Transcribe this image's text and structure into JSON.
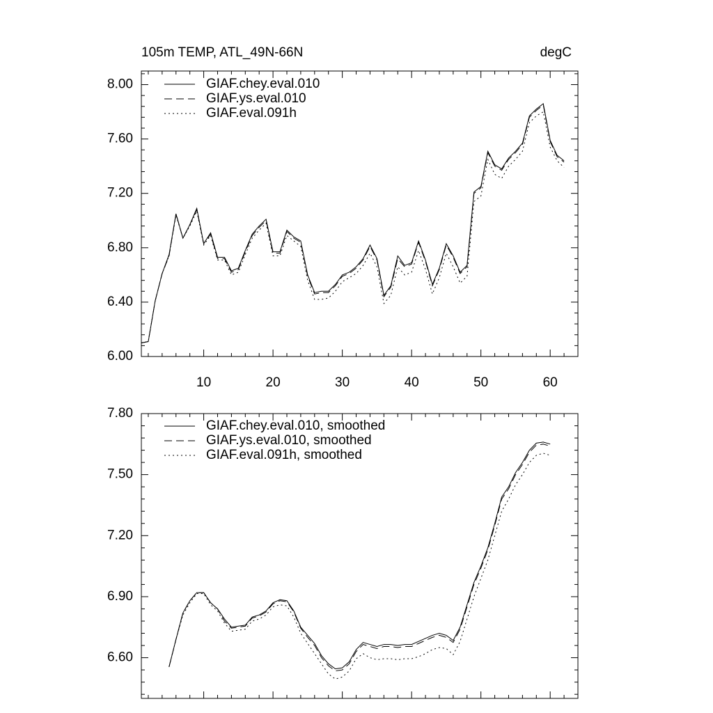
{
  "chart_data": [
    {
      "type": "line",
      "title": "105m TEMP, ATL_49N-66N",
      "units_label": "degC",
      "x": [
        1,
        2,
        3,
        4,
        5,
        6,
        7,
        8,
        9,
        10,
        11,
        12,
        13,
        14,
        15,
        16,
        17,
        18,
        19,
        20,
        21,
        22,
        23,
        24,
        25,
        26,
        27,
        28,
        29,
        30,
        31,
        32,
        33,
        34,
        35,
        36,
        37,
        38,
        39,
        40,
        41,
        42,
        43,
        44,
        45,
        46,
        47,
        48,
        49,
        50,
        51,
        52,
        53,
        54,
        55,
        56,
        57,
        58,
        59,
        60,
        61,
        62
      ],
      "xlim": [
        1,
        64
      ],
      "xticks": [
        10,
        20,
        30,
        40,
        50,
        60
      ],
      "ylim": [
        6.0,
        8.1
      ],
      "yticks": [
        {
          "value": 6.0,
          "label": "6.00"
        },
        {
          "value": 6.4,
          "label": "6.40"
        },
        {
          "value": 6.8,
          "label": "6.80"
        },
        {
          "value": 7.2,
          "label": "7.20"
        },
        {
          "value": 7.6,
          "label": "7.60"
        },
        {
          "value": 8.0,
          "label": "8.00"
        }
      ],
      "minor_ticks": 4,
      "series": [
        {
          "name": "GIAF.chey.eval.010",
          "color": "#000000",
          "dash": "solid",
          "values": [
            6.1,
            6.11,
            6.41,
            6.61,
            6.75,
            7.05,
            6.87,
            6.97,
            7.09,
            6.83,
            6.91,
            6.73,
            6.73,
            6.63,
            6.65,
            6.78,
            6.9,
            6.96,
            7.01,
            6.77,
            6.77,
            6.93,
            6.88,
            6.85,
            6.6,
            6.47,
            6.48,
            6.48,
            6.53,
            6.6,
            6.62,
            6.66,
            6.72,
            6.82,
            6.72,
            6.45,
            6.52,
            6.74,
            6.67,
            6.69,
            6.85,
            6.71,
            6.53,
            6.65,
            6.83,
            6.74,
            6.62,
            6.67,
            7.21,
            7.25,
            7.51,
            7.41,
            7.38,
            7.46,
            7.51,
            7.57,
            7.77,
            7.82,
            7.86,
            7.59,
            7.48,
            7.44
          ]
        },
        {
          "name": "GIAF.ys.eval.010",
          "color": "#000000",
          "dash": "dashed",
          "values": [
            6.1,
            6.11,
            6.41,
            6.61,
            6.74,
            7.05,
            6.87,
            6.97,
            7.08,
            6.83,
            6.9,
            6.72,
            6.72,
            6.62,
            6.64,
            6.77,
            6.89,
            6.95,
            7.0,
            6.76,
            6.76,
            6.92,
            6.87,
            6.84,
            6.59,
            6.46,
            6.47,
            6.47,
            6.52,
            6.59,
            6.61,
            6.65,
            6.71,
            6.81,
            6.71,
            6.44,
            6.51,
            6.72,
            6.66,
            6.68,
            6.84,
            6.7,
            6.52,
            6.64,
            6.82,
            6.73,
            6.61,
            6.66,
            7.2,
            7.24,
            7.5,
            7.4,
            7.37,
            7.45,
            7.5,
            7.56,
            7.76,
            7.81,
            7.85,
            7.58,
            7.47,
            7.43
          ]
        },
        {
          "name": "GIAF.eval.091h",
          "color": "#000000",
          "dash": "dotted",
          "values": [
            6.1,
            6.11,
            6.41,
            6.61,
            6.74,
            7.04,
            6.87,
            6.96,
            7.07,
            6.82,
            6.89,
            6.71,
            6.71,
            6.6,
            6.62,
            6.75,
            6.87,
            6.93,
            6.98,
            6.74,
            6.74,
            6.89,
            6.85,
            6.81,
            6.56,
            6.42,
            6.42,
            6.43,
            6.48,
            6.55,
            6.58,
            6.61,
            6.67,
            6.76,
            6.66,
            6.39,
            6.45,
            6.66,
            6.6,
            6.62,
            6.78,
            6.64,
            6.46,
            6.58,
            6.76,
            6.66,
            6.54,
            6.59,
            7.14,
            7.18,
            7.45,
            7.34,
            7.31,
            7.4,
            7.45,
            7.51,
            7.72,
            7.77,
            7.8,
            7.54,
            7.44,
            7.39
          ]
        }
      ]
    },
    {
      "type": "line",
      "x": [
        5,
        6,
        7,
        8,
        9,
        10,
        11,
        12,
        13,
        14,
        15,
        16,
        17,
        18,
        19,
        20,
        21,
        22,
        23,
        24,
        25,
        26,
        27,
        28,
        29,
        30,
        31,
        32,
        33,
        34,
        35,
        36,
        37,
        38,
        39,
        40,
        41,
        42,
        43,
        44,
        45,
        46,
        47,
        48,
        49,
        50,
        51,
        52,
        53,
        54,
        55,
        56,
        57,
        58,
        59,
        60
      ],
      "xlim": [
        1,
        64
      ],
      "xticks": [
        10,
        20,
        30,
        40,
        50,
        60
      ],
      "ylim": [
        6.4,
        7.8
      ],
      "yticks": [
        {
          "value": 6.6,
          "label": "6.60"
        },
        {
          "value": 6.9,
          "label": "6.90"
        },
        {
          "value": 7.2,
          "label": "7.20"
        },
        {
          "value": 7.5,
          "label": "7.50"
        },
        {
          "value": 7.8,
          "label": "7.80"
        }
      ],
      "minor_ticks": 4,
      "series": [
        {
          "name": "GIAF.chey.eval.010, smoothed",
          "color": "#000000",
          "dash": "solid",
          "values": [
            6.555,
            6.69,
            6.82,
            6.88,
            6.92,
            6.92,
            6.87,
            6.84,
            6.79,
            6.75,
            6.755,
            6.76,
            6.8,
            6.81,
            6.83,
            6.87,
            6.885,
            6.88,
            6.83,
            6.75,
            6.71,
            6.67,
            6.61,
            6.57,
            6.545,
            6.55,
            6.58,
            6.64,
            6.675,
            6.665,
            6.655,
            6.665,
            6.665,
            6.66,
            6.665,
            6.665,
            6.68,
            6.695,
            6.71,
            6.72,
            6.71,
            6.685,
            6.75,
            6.86,
            6.97,
            7.05,
            7.14,
            7.26,
            7.39,
            7.44,
            7.51,
            7.56,
            7.62,
            7.655,
            7.66,
            7.65
          ]
        },
        {
          "name": "GIAF.ys.eval.010, smoothed",
          "color": "#000000",
          "dash": "dashed",
          "values": [
            6.555,
            6.69,
            6.82,
            6.88,
            6.92,
            6.92,
            6.87,
            6.84,
            6.78,
            6.745,
            6.75,
            6.755,
            6.795,
            6.805,
            6.825,
            6.865,
            6.88,
            6.875,
            6.825,
            6.745,
            6.7,
            6.66,
            6.6,
            6.56,
            6.535,
            6.54,
            6.57,
            6.63,
            6.665,
            6.655,
            6.645,
            6.655,
            6.655,
            6.65,
            6.655,
            6.655,
            6.67,
            6.685,
            6.7,
            6.71,
            6.7,
            6.675,
            6.74,
            6.85,
            6.96,
            7.04,
            7.13,
            7.25,
            7.38,
            7.43,
            7.5,
            7.55,
            7.61,
            7.645,
            7.65,
            7.64
          ]
        },
        {
          "name": "GIAF.eval.091h, smoothed",
          "color": "#000000",
          "dash": "dotted",
          "values": [
            6.555,
            6.69,
            6.81,
            6.87,
            6.915,
            6.915,
            6.86,
            6.83,
            6.77,
            6.73,
            6.735,
            6.74,
            6.78,
            6.79,
            6.81,
            6.85,
            6.86,
            6.855,
            6.8,
            6.72,
            6.67,
            6.62,
            6.57,
            6.52,
            6.495,
            6.505,
            6.535,
            6.595,
            6.62,
            6.6,
            6.59,
            6.595,
            6.595,
            6.59,
            6.595,
            6.595,
            6.605,
            6.62,
            6.64,
            6.65,
            6.645,
            6.615,
            6.68,
            6.79,
            6.9,
            6.99,
            7.08,
            7.2,
            7.32,
            7.38,
            7.45,
            7.5,
            7.56,
            7.595,
            7.605,
            7.595
          ]
        }
      ]
    }
  ]
}
